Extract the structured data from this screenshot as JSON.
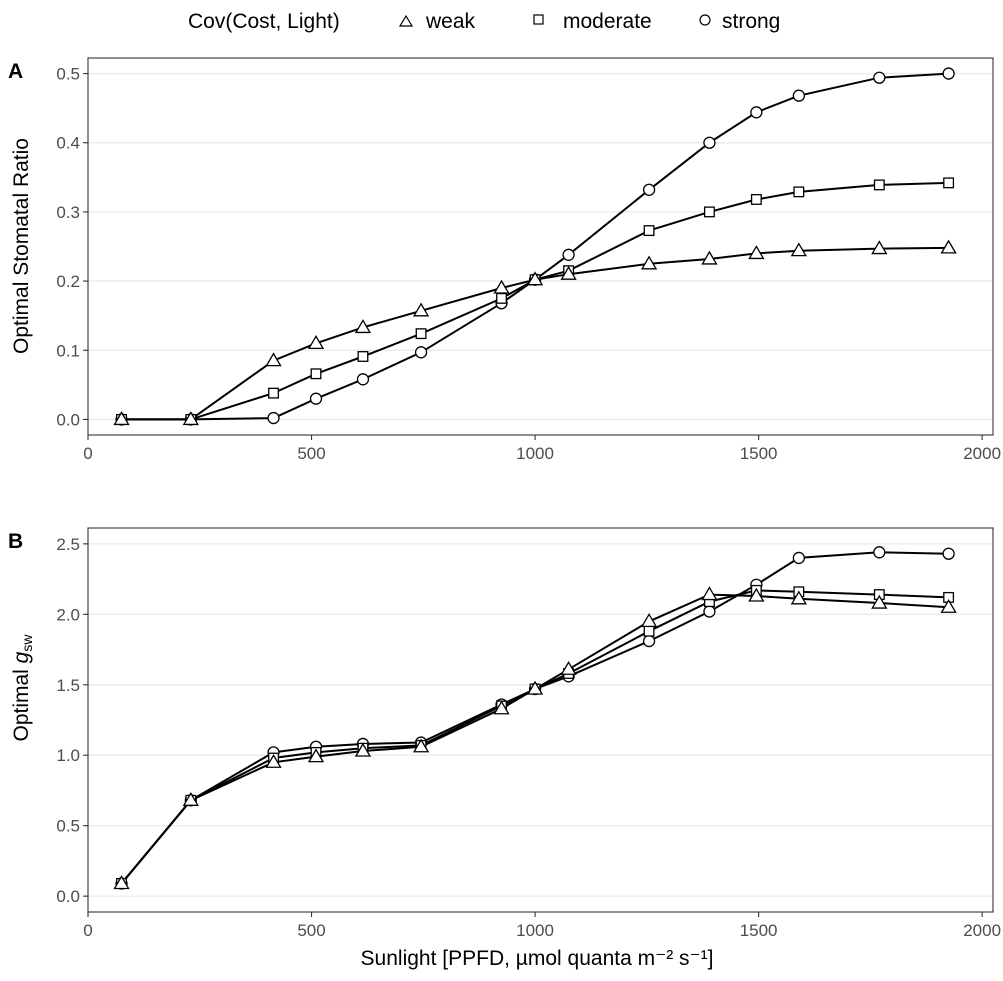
{
  "legend": {
    "title": "Cov(Cost, Light)",
    "items": [
      {
        "shape": "triangle-icon",
        "label": "weak"
      },
      {
        "shape": "square-icon",
        "label": "moderate"
      },
      {
        "shape": "circle-icon",
        "label": "strong"
      }
    ]
  },
  "colors": {
    "line": "#000000",
    "marker_fill": "#ffffff",
    "grid": "#ebebeb",
    "text": "#4d4d4d"
  },
  "chart_data": [
    {
      "type": "line",
      "panel_label": "A",
      "title": "",
      "xlabel": "",
      "ylabel": "Optimal Stomatal Ratio",
      "xlim": [
        0,
        2000
      ],
      "ylim": [
        0,
        0.5
      ],
      "x_ticks": [
        0,
        500,
        1000,
        1500,
        2000
      ],
      "y_ticks": [
        0.0,
        0.1,
        0.2,
        0.3,
        0.4,
        0.5
      ],
      "y_tick_labels": [
        "0.0",
        "0.1",
        "0.2",
        "0.3",
        "0.4",
        "0.5"
      ],
      "grid": true,
      "x": [
        75,
        230,
        415,
        510,
        615,
        745,
        925,
        1000,
        1075,
        1255,
        1390,
        1495,
        1590,
        1770,
        1925
      ],
      "series": [
        {
          "name": "weak",
          "marker": "triangle",
          "values": [
            0.0,
            0.0,
            0.085,
            0.11,
            0.133,
            0.157,
            0.19,
            0.202,
            0.21,
            0.225,
            0.232,
            0.24,
            0.244,
            0.247,
            0.248
          ]
        },
        {
          "name": "moderate",
          "marker": "square",
          "values": [
            0.0,
            0.0,
            0.038,
            0.066,
            0.091,
            0.124,
            0.175,
            0.202,
            0.215,
            0.273,
            0.3,
            0.318,
            0.329,
            0.339,
            0.342
          ]
        },
        {
          "name": "strong",
          "marker": "circle",
          "values": [
            0.0,
            0.0,
            0.002,
            0.03,
            0.058,
            0.097,
            0.168,
            0.202,
            0.238,
            0.332,
            0.4,
            0.444,
            0.468,
            0.494,
            0.5
          ]
        }
      ]
    },
    {
      "type": "line",
      "panel_label": "B",
      "title": "",
      "xlabel": "Sunlight [PPFD, µmol quanta m⁻² s⁻¹]",
      "ylabel_main": "Optimal ",
      "ylabel_var": "g",
      "ylabel_sub": "sw",
      "xlim": [
        0,
        2000
      ],
      "ylim": [
        0,
        2.5
      ],
      "x_ticks": [
        0,
        500,
        1000,
        1500,
        2000
      ],
      "y_ticks": [
        0.0,
        0.5,
        1.0,
        1.5,
        2.0,
        2.5
      ],
      "y_tick_labels": [
        "0.0",
        "0.5",
        "1.0",
        "1.5",
        "2.0",
        "2.5"
      ],
      "grid": true,
      "x": [
        75,
        230,
        415,
        510,
        615,
        745,
        925,
        1000,
        1075,
        1255,
        1390,
        1495,
        1590,
        1770,
        1925
      ],
      "series": [
        {
          "name": "weak",
          "marker": "triangle",
          "values": [
            0.09,
            0.68,
            0.95,
            0.99,
            1.03,
            1.06,
            1.33,
            1.47,
            1.61,
            1.95,
            2.14,
            2.13,
            2.11,
            2.08,
            2.05
          ]
        },
        {
          "name": "moderate",
          "marker": "square",
          "values": [
            0.09,
            0.68,
            0.98,
            1.02,
            1.05,
            1.07,
            1.35,
            1.47,
            1.58,
            1.88,
            2.09,
            2.17,
            2.16,
            2.14,
            2.12
          ]
        },
        {
          "name": "strong",
          "marker": "circle",
          "values": [
            0.09,
            0.68,
            1.02,
            1.06,
            1.08,
            1.09,
            1.36,
            1.47,
            1.56,
            1.81,
            2.02,
            2.21,
            2.4,
            2.44,
            2.43
          ]
        }
      ]
    }
  ]
}
